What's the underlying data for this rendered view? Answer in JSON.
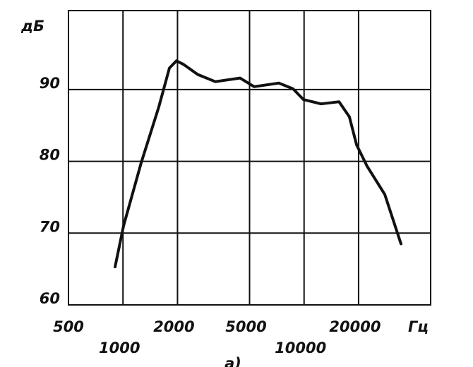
{
  "chart_data": {
    "type": "line",
    "y_label": "дБ",
    "x_label": "Гц",
    "caption": "а)",
    "x": [
      904,
      1007,
      1260,
      1577,
      1805,
      1975,
      2160,
      2585,
      3235,
      4430,
      5300,
      7260,
      8690,
      9930,
      12400,
      15600,
      17800,
      19500,
      22300,
      27900,
      34300
    ],
    "series": [
      {
        "color": "#111111",
        "values": [
          65.3,
          71.0,
          79.8,
          87.6,
          93.0,
          94.0,
          93.5,
          92.1,
          91.1,
          91.6,
          90.4,
          90.9,
          90.1,
          88.6,
          88.0,
          88.3,
          86.2,
          82.3,
          79.3,
          75.4,
          68.5
        ]
      }
    ],
    "xscale": "log",
    "xlim": [
      500,
      50000
    ],
    "xticks": [
      500,
      1000,
      2000,
      5000,
      10000,
      20000
    ],
    "ylim": [
      60,
      101
    ],
    "yticks": [
      60,
      70,
      80,
      90
    ],
    "grid": true
  }
}
